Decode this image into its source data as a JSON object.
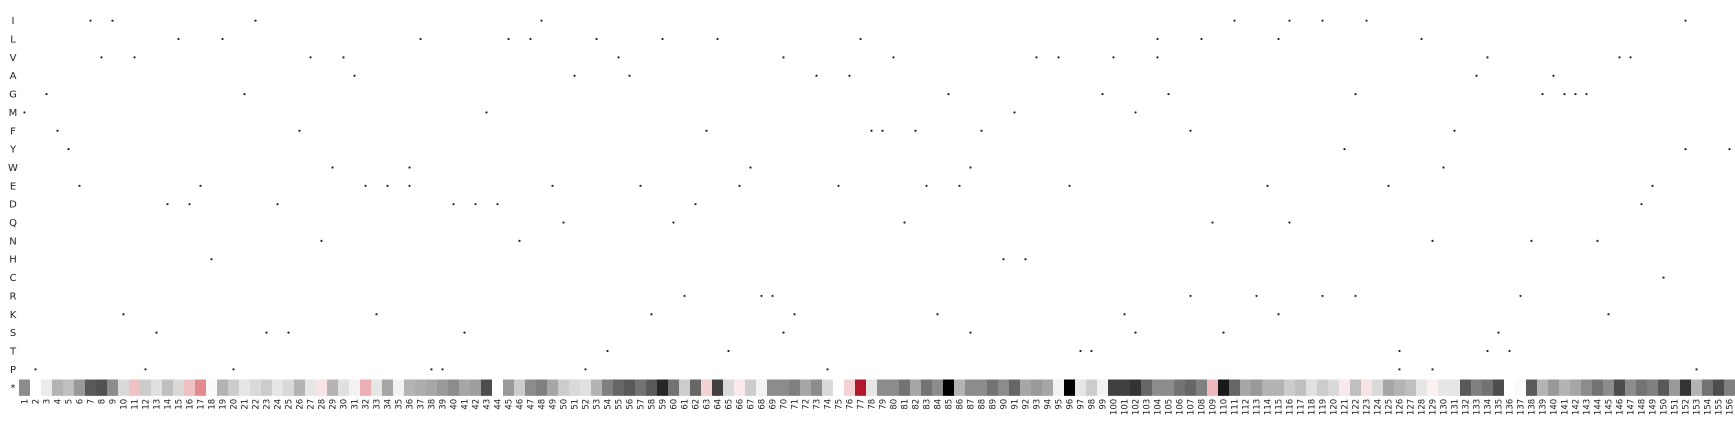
{
  "chart_data": {
    "type": "heatmap",
    "title": "",
    "xlabel": "",
    "ylabel": "",
    "y_categories": [
      "I",
      "L",
      "V",
      "A",
      "G",
      "M",
      "F",
      "Y",
      "W",
      "E",
      "D",
      "Q",
      "N",
      "H",
      "C",
      "R",
      "K",
      "S",
      "T",
      "P",
      "*"
    ],
    "x_range": [
      1,
      156
    ],
    "x_ticks": [
      "1",
      "2",
      "3",
      "4",
      "5",
      "6",
      "7",
      "8",
      "9",
      "10",
      "11",
      "12",
      "13",
      "14",
      "15",
      "16",
      "17",
      "18",
      "19",
      "20",
      "21",
      "22",
      "23",
      "24",
      "25",
      "26",
      "27",
      "28",
      "29",
      "30",
      "31",
      "32",
      "33",
      "34",
      "35",
      "36",
      "37",
      "38",
      "39",
      "40",
      "41",
      "42",
      "43",
      "44",
      "45",
      "46",
      "47",
      "48",
      "49",
      "50",
      "51",
      "52",
      "53",
      "54",
      "55",
      "56",
      "57",
      "58",
      "59",
      "60",
      "61",
      "62",
      "63",
      "64",
      "65",
      "66",
      "67",
      "68",
      "69",
      "70",
      "71",
      "72",
      "73",
      "74",
      "75",
      "76",
      "77",
      "78",
      "79",
      "80",
      "81",
      "82",
      "83",
      "84",
      "85",
      "86",
      "87",
      "88",
      "89",
      "90",
      "91",
      "92",
      "93",
      "94",
      "95",
      "96",
      "97",
      "98",
      "99",
      "100",
      "101",
      "102",
      "103",
      "104",
      "105",
      "106",
      "107",
      "108",
      "109",
      "110",
      "111",
      "112",
      "113",
      "114",
      "115",
      "116",
      "117",
      "118",
      "119",
      "120",
      "121",
      "122",
      "123",
      "124",
      "125",
      "126",
      "127",
      "128",
      "129",
      "130",
      "131",
      "132",
      "133",
      "134",
      "135",
      "136",
      "137",
      "138",
      "139",
      "140",
      "141",
      "142",
      "143",
      "144",
      "145",
      "146",
      "147",
      "148",
      "149",
      "150",
      "151",
      "152",
      "153",
      "154",
      "155",
      "156"
    ],
    "wildtype_markers": [
      {
        "aa": "I",
        "positions": [
          7,
          9,
          22,
          48,
          111,
          116,
          119,
          123,
          152
        ]
      },
      {
        "aa": "L",
        "positions": [
          15,
          19,
          37,
          45,
          47,
          53,
          59,
          64,
          77,
          104,
          108,
          115,
          128
        ]
      },
      {
        "aa": "V",
        "positions": [
          8,
          11,
          27,
          30,
          55,
          70,
          80,
          93,
          95,
          100,
          104,
          134,
          146,
          147
        ]
      },
      {
        "aa": "A",
        "positions": [
          31,
          51,
          56,
          73,
          76,
          133,
          140
        ]
      },
      {
        "aa": "G",
        "positions": [
          3,
          21,
          85,
          99,
          105,
          122,
          139,
          141,
          142,
          143
        ]
      },
      {
        "aa": "M",
        "positions": [
          1,
          43,
          91,
          102
        ]
      },
      {
        "aa": "F",
        "positions": [
          4,
          26,
          63,
          78,
          79,
          82,
          88,
          107,
          131
        ]
      },
      {
        "aa": "Y",
        "positions": [
          5,
          121,
          152,
          156
        ]
      },
      {
        "aa": "W",
        "positions": [
          29,
          36,
          67,
          87,
          130
        ]
      },
      {
        "aa": "E",
        "positions": [
          6,
          17,
          32,
          34,
          36,
          49,
          57,
          66,
          75,
          83,
          86,
          96,
          114,
          125,
          149
        ]
      },
      {
        "aa": "D",
        "positions": [
          14,
          16,
          24,
          40,
          42,
          44,
          62,
          148
        ]
      },
      {
        "aa": "Q",
        "positions": [
          50,
          60,
          81,
          109,
          116
        ]
      },
      {
        "aa": "N",
        "positions": [
          28,
          46,
          129,
          138,
          144
        ]
      },
      {
        "aa": "H",
        "positions": [
          18,
          90,
          92
        ]
      },
      {
        "aa": "C",
        "positions": [
          150
        ]
      },
      {
        "aa": "R",
        "positions": [
          61,
          68,
          69,
          107,
          113,
          119,
          122,
          137
        ]
      },
      {
        "aa": "K",
        "positions": [
          10,
          33,
          58,
          71,
          84,
          101,
          115,
          145
        ]
      },
      {
        "aa": "S",
        "positions": [
          13,
          23,
          25,
          41,
          70,
          87,
          102,
          110,
          135
        ]
      },
      {
        "aa": "T",
        "positions": [
          54,
          65,
          97,
          98,
          126,
          134,
          136
        ]
      },
      {
        "aa": "P",
        "positions": [
          2,
          12,
          20,
          38,
          39,
          52,
          74,
          126,
          129,
          153
        ]
      }
    ],
    "stop_row_values": [
      0.45,
      0,
      0.08,
      0.3,
      0.25,
      0.4,
      0.65,
      0.68,
      0.45,
      0.15,
      "p0.35",
      0.2,
      0.12,
      0.25,
      0.15,
      "p0.35",
      "p0.65",
      0.02,
      0.3,
      0.2,
      0.1,
      0.15,
      0.2,
      0.1,
      0.15,
      0.3,
      0.1,
      "p0.15",
      0.3,
      0.12,
      0.05,
      "p0.45",
      0.1,
      0.35,
      0.05,
      0.3,
      0.32,
      0.35,
      0.4,
      0.45,
      0.35,
      0.38,
      0.7,
      0,
      0.4,
      0.2,
      0.45,
      0.5,
      0.35,
      0.2,
      0.15,
      0.12,
      0.3,
      0.5,
      0.6,
      0.65,
      0.55,
      0.65,
      0.85,
      0.55,
      0.2,
      0.6,
      "p0.25",
      0.75,
      0.15,
      "p0.12",
      0.2,
      0.05,
      0.45,
      0.45,
      0.5,
      0.35,
      0.45,
      0.15,
      0,
      "p0.25",
      "r1",
      0.1,
      0.45,
      0.45,
      0.55,
      0.35,
      0.55,
      0.45,
      1,
      0.3,
      0.45,
      0.45,
      0.55,
      0.45,
      0.6,
      0.35,
      0.4,
      0.35,
      0.05,
      1,
      0.1,
      0.2,
      0.05,
      0.75,
      0.75,
      0.8,
      0.6,
      0.45,
      0.45,
      0.55,
      0.6,
      0.5,
      "p0.4",
      0.9,
      0.6,
      0.35,
      0.4,
      0.3,
      0.3,
      0.2,
      0.25,
      0.12,
      0.2,
      0.15,
      "p0.12",
      0.25,
      "p0.15",
      0.15,
      0.35,
      0.3,
      0.25,
      0.1,
      "p0.08",
      0.1,
      0.1,
      0.65,
      0.5,
      0.55,
      0.7,
      0,
      0.02,
      0.65,
      0.3,
      0.4,
      0.3,
      0.35,
      0.45,
      0.55,
      0.45,
      0.7,
      0.45,
      0.55,
      0.5,
      0.65,
      0.4,
      0.8,
      0.3,
      0.55,
      0.7,
      0.5
    ],
    "colors": {
      "neutral": "#ffffff",
      "loss": "#000000",
      "gain": "#b2182b",
      "marker": "#222222"
    },
    "grid": false,
    "legend": "none"
  }
}
